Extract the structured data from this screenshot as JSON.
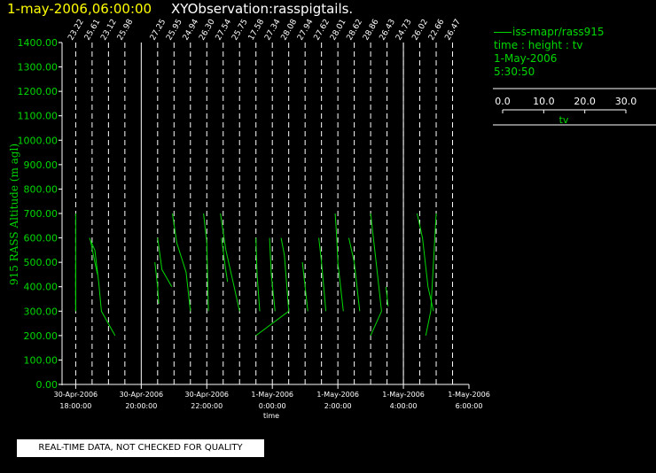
{
  "header": {
    "datetime": "1-may-2006,06:00:00",
    "title": "XYObservation:rasspigtails."
  },
  "legend": {
    "line_label": "iss-mapr/rass915",
    "time_height": "time : height : tv",
    "date": "1-May-2006",
    "time": "5:30:50",
    "scale_ticks": [
      "0.0",
      "10.0",
      "20.0",
      "30.0"
    ],
    "scale_label": "tv"
  },
  "footer": {
    "quality_note": "REAL-TIME DATA, NOT CHECKED FOR QUALITY"
  },
  "colors": {
    "background": "#000000",
    "trace": "#00d800",
    "axis": "#ffffff",
    "date_title": "#ffff00"
  },
  "chart_data": {
    "type": "line",
    "title": "XYObservation:rasspigtails.",
    "xlabel": "time",
    "ylabel": "915 RASS Altitude (m agl)",
    "ylim": [
      0,
      1400
    ],
    "xlim": [
      "2006-04-30 17:35",
      "2006-05-01 06:00"
    ],
    "yticks": [
      "0.00",
      "100.00",
      "200.00",
      "300.00",
      "400.00",
      "500.00",
      "600.00",
      "700.00",
      "800.00",
      "900.00",
      "1000.00",
      "1100.00",
      "1200.00",
      "1300.00",
      "1400.00"
    ],
    "xticks": [
      {
        "t": "2006-04-30 18:00",
        "date": "30-Apr-2006",
        "time": "18:00:00"
      },
      {
        "t": "2006-04-30 20:00",
        "date": "30-Apr-2006",
        "time": "20:00:00"
      },
      {
        "t": "2006-04-30 22:00",
        "date": "30-Apr-2006",
        "time": "22:00:00"
      },
      {
        "t": "2006-05-01 00:00",
        "date": "1-May-2006",
        "time": "0:00:00"
      },
      {
        "t": "2006-05-01 02:00",
        "date": "1-May-2006",
        "time": "2:00:00"
      },
      {
        "t": "2006-05-01 04:00",
        "date": "1-May-2006",
        "time": "4:00:00"
      },
      {
        "t": "2006-05-01 06:00",
        "date": "1-May-2006",
        "time": "6:00:00"
      }
    ],
    "observations": [
      {
        "t": "2006-04-30 18:00",
        "label": "23.22"
      },
      {
        "t": "2006-04-30 18:30",
        "label": "25.61"
      },
      {
        "t": "2006-04-30 19:00",
        "label": "23.12"
      },
      {
        "t": "2006-04-30 19:30",
        "label": "25.98"
      },
      {
        "t": "2006-04-30 20:30",
        "label": "27.25"
      },
      {
        "t": "2006-04-30 21:00",
        "label": "25.95"
      },
      {
        "t": "2006-04-30 21:30",
        "label": "24.94"
      },
      {
        "t": "2006-04-30 22:00",
        "label": "26.30"
      },
      {
        "t": "2006-04-30 22:30",
        "label": "27.54"
      },
      {
        "t": "2006-04-30 23:00",
        "label": "25.75"
      },
      {
        "t": "2006-04-30 23:30",
        "label": "17.58"
      },
      {
        "t": "2006-05-01 00:00",
        "label": "27.34"
      },
      {
        "t": "2006-05-01 00:30",
        "label": "28.08"
      },
      {
        "t": "2006-05-01 01:00",
        "label": "27.94"
      },
      {
        "t": "2006-05-01 01:30",
        "label": "27.62"
      },
      {
        "t": "2006-05-01 02:00",
        "label": "28.01"
      },
      {
        "t": "2006-05-01 02:30",
        "label": "28.62"
      },
      {
        "t": "2006-05-01 03:00",
        "label": "28.86"
      },
      {
        "t": "2006-05-01 03:30",
        "label": "26.43"
      },
      {
        "t": "2006-05-01 04:00",
        "label": "24.73"
      },
      {
        "t": "2006-05-01 04:30",
        "label": "26.02"
      },
      {
        "t": "2006-05-01 05:00",
        "label": "22.66"
      },
      {
        "t": "2006-05-01 05:30",
        "label": "26.47"
      }
    ],
    "solid_lines": [
      "2006-04-30 20:00",
      "2006-05-01 04:00"
    ],
    "series": [
      {
        "points": [
          [
            "2006-04-30 18:00",
            700
          ],
          [
            "2006-04-30 18:00",
            300
          ]
        ]
      },
      {
        "points": [
          [
            "2006-04-30 18:00",
            500
          ],
          [
            "2006-04-30 18:00",
            300
          ]
        ]
      },
      {
        "points": [
          [
            "2006-04-30 18:25",
            600
          ],
          [
            "2006-04-30 18:35",
            550
          ],
          [
            "2006-04-30 18:42",
            420
          ],
          [
            "2006-04-30 18:47",
            300
          ],
          [
            "2006-04-30 19:12",
            200
          ]
        ]
      },
      {
        "points": [
          [
            "2006-04-30 18:27",
            590
          ],
          [
            "2006-04-30 18:35",
            500
          ],
          [
            "2006-04-30 18:40",
            450
          ]
        ]
      },
      {
        "points": [
          [
            "2006-04-30 20:25",
            500
          ],
          [
            "2006-04-30 20:30",
            400
          ],
          [
            "2006-04-30 20:32",
            330
          ]
        ]
      },
      {
        "points": [
          [
            "2006-04-30 20:30",
            600
          ],
          [
            "2006-04-30 20:38",
            470
          ],
          [
            "2006-04-30 20:56",
            400
          ]
        ]
      },
      {
        "points": [
          [
            "2006-04-30 20:57",
            700
          ],
          [
            "2006-04-30 21:05",
            580
          ],
          [
            "2006-04-30 21:22",
            460
          ],
          [
            "2006-04-30 21:30",
            300
          ]
        ]
      },
      {
        "points": [
          [
            "2006-04-30 21:54",
            700
          ],
          [
            "2006-04-30 22:00",
            580
          ],
          [
            "2006-04-30 22:03",
            300
          ]
        ]
      },
      {
        "points": [
          [
            "2006-04-30 22:25",
            700
          ],
          [
            "2006-04-30 22:35",
            550
          ],
          [
            "2006-04-30 22:50",
            400
          ],
          [
            "2006-04-30 23:00",
            300
          ]
        ]
      },
      {
        "points": [
          [
            "2006-04-30 22:27",
            600
          ],
          [
            "2006-04-30 22:34",
            480
          ],
          [
            "2006-04-30 22:38",
            420
          ]
        ]
      },
      {
        "points": [
          [
            "2006-04-30 23:30",
            600
          ],
          [
            "2006-04-30 23:32",
            450
          ],
          [
            "2006-04-30 23:37",
            300
          ]
        ]
      },
      {
        "points": [
          [
            "2006-04-30 23:55",
            600
          ],
          [
            "2006-04-30 23:58",
            450
          ],
          [
            "2006-05-01 00:05",
            300
          ]
        ]
      },
      {
        "points": [
          [
            "2006-04-30 23:30",
            200
          ],
          [
            "2006-05-01 00:30",
            300
          ]
        ]
      },
      {
        "points": [
          [
            "2006-05-01 00:16",
            600
          ],
          [
            "2006-05-01 00:22",
            530
          ],
          [
            "2006-05-01 00:30",
            300
          ]
        ]
      },
      {
        "points": [
          [
            "2006-05-01 00:55",
            500
          ],
          [
            "2006-05-01 01:00",
            400
          ],
          [
            "2006-05-01 01:05",
            300
          ]
        ]
      },
      {
        "points": [
          [
            "2006-05-01 01:25",
            600
          ],
          [
            "2006-05-01 01:30",
            500
          ],
          [
            "2006-05-01 01:38",
            300
          ]
        ]
      },
      {
        "points": [
          [
            "2006-05-01 01:55",
            700
          ],
          [
            "2006-05-01 01:58",
            600
          ],
          [
            "2006-05-01 02:00",
            500
          ],
          [
            "2006-05-01 02:10",
            300
          ]
        ]
      },
      {
        "points": [
          [
            "2006-05-01 02:20",
            600
          ],
          [
            "2006-05-01 02:30",
            500
          ],
          [
            "2006-05-01 02:40",
            300
          ]
        ]
      },
      {
        "points": [
          [
            "2006-05-01 03:00",
            700
          ],
          [
            "2006-05-01 03:10",
            500
          ],
          [
            "2006-05-01 03:20",
            300
          ]
        ]
      },
      {
        "points": [
          [
            "2006-05-01 03:00",
            200
          ],
          [
            "2006-05-01 03:20",
            300
          ]
        ]
      },
      {
        "points": [
          [
            "2006-05-01 03:28",
            400
          ],
          [
            "2006-05-01 03:32",
            320
          ]
        ]
      },
      {
        "points": [
          [
            "2006-05-01 04:25",
            700
          ],
          [
            "2006-05-01 04:35",
            600
          ],
          [
            "2006-05-01 04:45",
            400
          ],
          [
            "2006-05-01 04:55",
            300
          ]
        ]
      },
      {
        "points": [
          [
            "2006-05-01 04:41",
            200
          ],
          [
            "2006-05-01 04:50",
            300
          ],
          [
            "2006-05-01 04:55",
            500
          ],
          [
            "2006-05-01 05:00",
            700
          ]
        ]
      }
    ]
  }
}
